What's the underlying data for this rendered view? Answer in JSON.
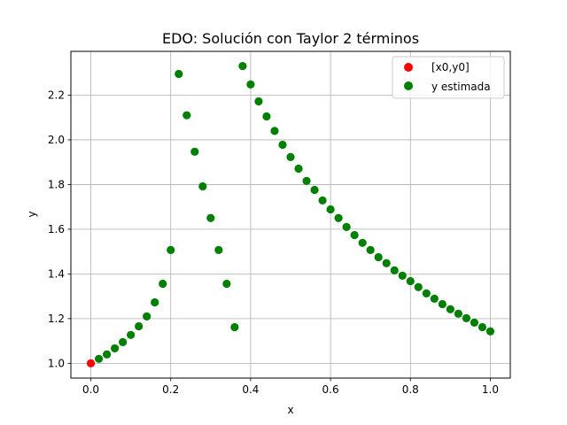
{
  "chart_data": {
    "type": "scatter",
    "title": "EDO: Solución con Taylor 2 términos",
    "xlabel": "x",
    "ylabel": "y",
    "xlim": [
      -0.05,
      1.05
    ],
    "ylim": [
      0.934,
      2.396
    ],
    "grid": true,
    "legend_position": "upper right",
    "x_ticks": [
      "0.0",
      "0.2",
      "0.4",
      "0.6",
      "0.8",
      "1.0"
    ],
    "y_ticks": [
      "1.0",
      "1.2",
      "1.4",
      "1.6",
      "1.8",
      "2.0",
      "2.2"
    ],
    "series": [
      {
        "name": "[x0,y0]",
        "color": "#ff0000",
        "x": [
          0.0
        ],
        "y": [
          1.0
        ]
      },
      {
        "name": "y estimada",
        "color": "#008000",
        "x": [
          0.02,
          0.04,
          0.06,
          0.08,
          0.1,
          0.12,
          0.14,
          0.16,
          0.18,
          0.2,
          0.22,
          0.24,
          0.26,
          0.28,
          0.3,
          0.32,
          0.34,
          0.36,
          0.38,
          0.4,
          0.42,
          0.44,
          0.46,
          0.48,
          0.5,
          0.52,
          0.54,
          0.56,
          0.58,
          0.6,
          0.62,
          0.64,
          0.66,
          0.68,
          0.7,
          0.72,
          0.74,
          0.76,
          0.78,
          0.8,
          0.82,
          0.84,
          0.86,
          0.88,
          0.9,
          0.92,
          0.94,
          0.96,
          0.98,
          1.0
        ],
        "y": [
          1.02,
          1.04,
          1.067,
          1.095,
          1.127,
          1.166,
          1.21,
          1.273,
          1.356,
          1.507,
          2.295,
          2.11,
          1.947,
          1.792,
          1.65,
          1.507,
          1.356,
          1.162,
          2.33,
          2.248,
          2.172,
          2.105,
          2.04,
          1.978,
          1.923,
          1.871,
          1.816,
          1.776,
          1.729,
          1.689,
          1.65,
          1.61,
          1.574,
          1.539,
          1.507,
          1.475,
          1.448,
          1.416,
          1.392,
          1.368,
          1.341,
          1.313,
          1.289,
          1.265,
          1.242,
          1.222,
          1.202,
          1.182,
          1.162,
          1.143
        ]
      }
    ]
  }
}
